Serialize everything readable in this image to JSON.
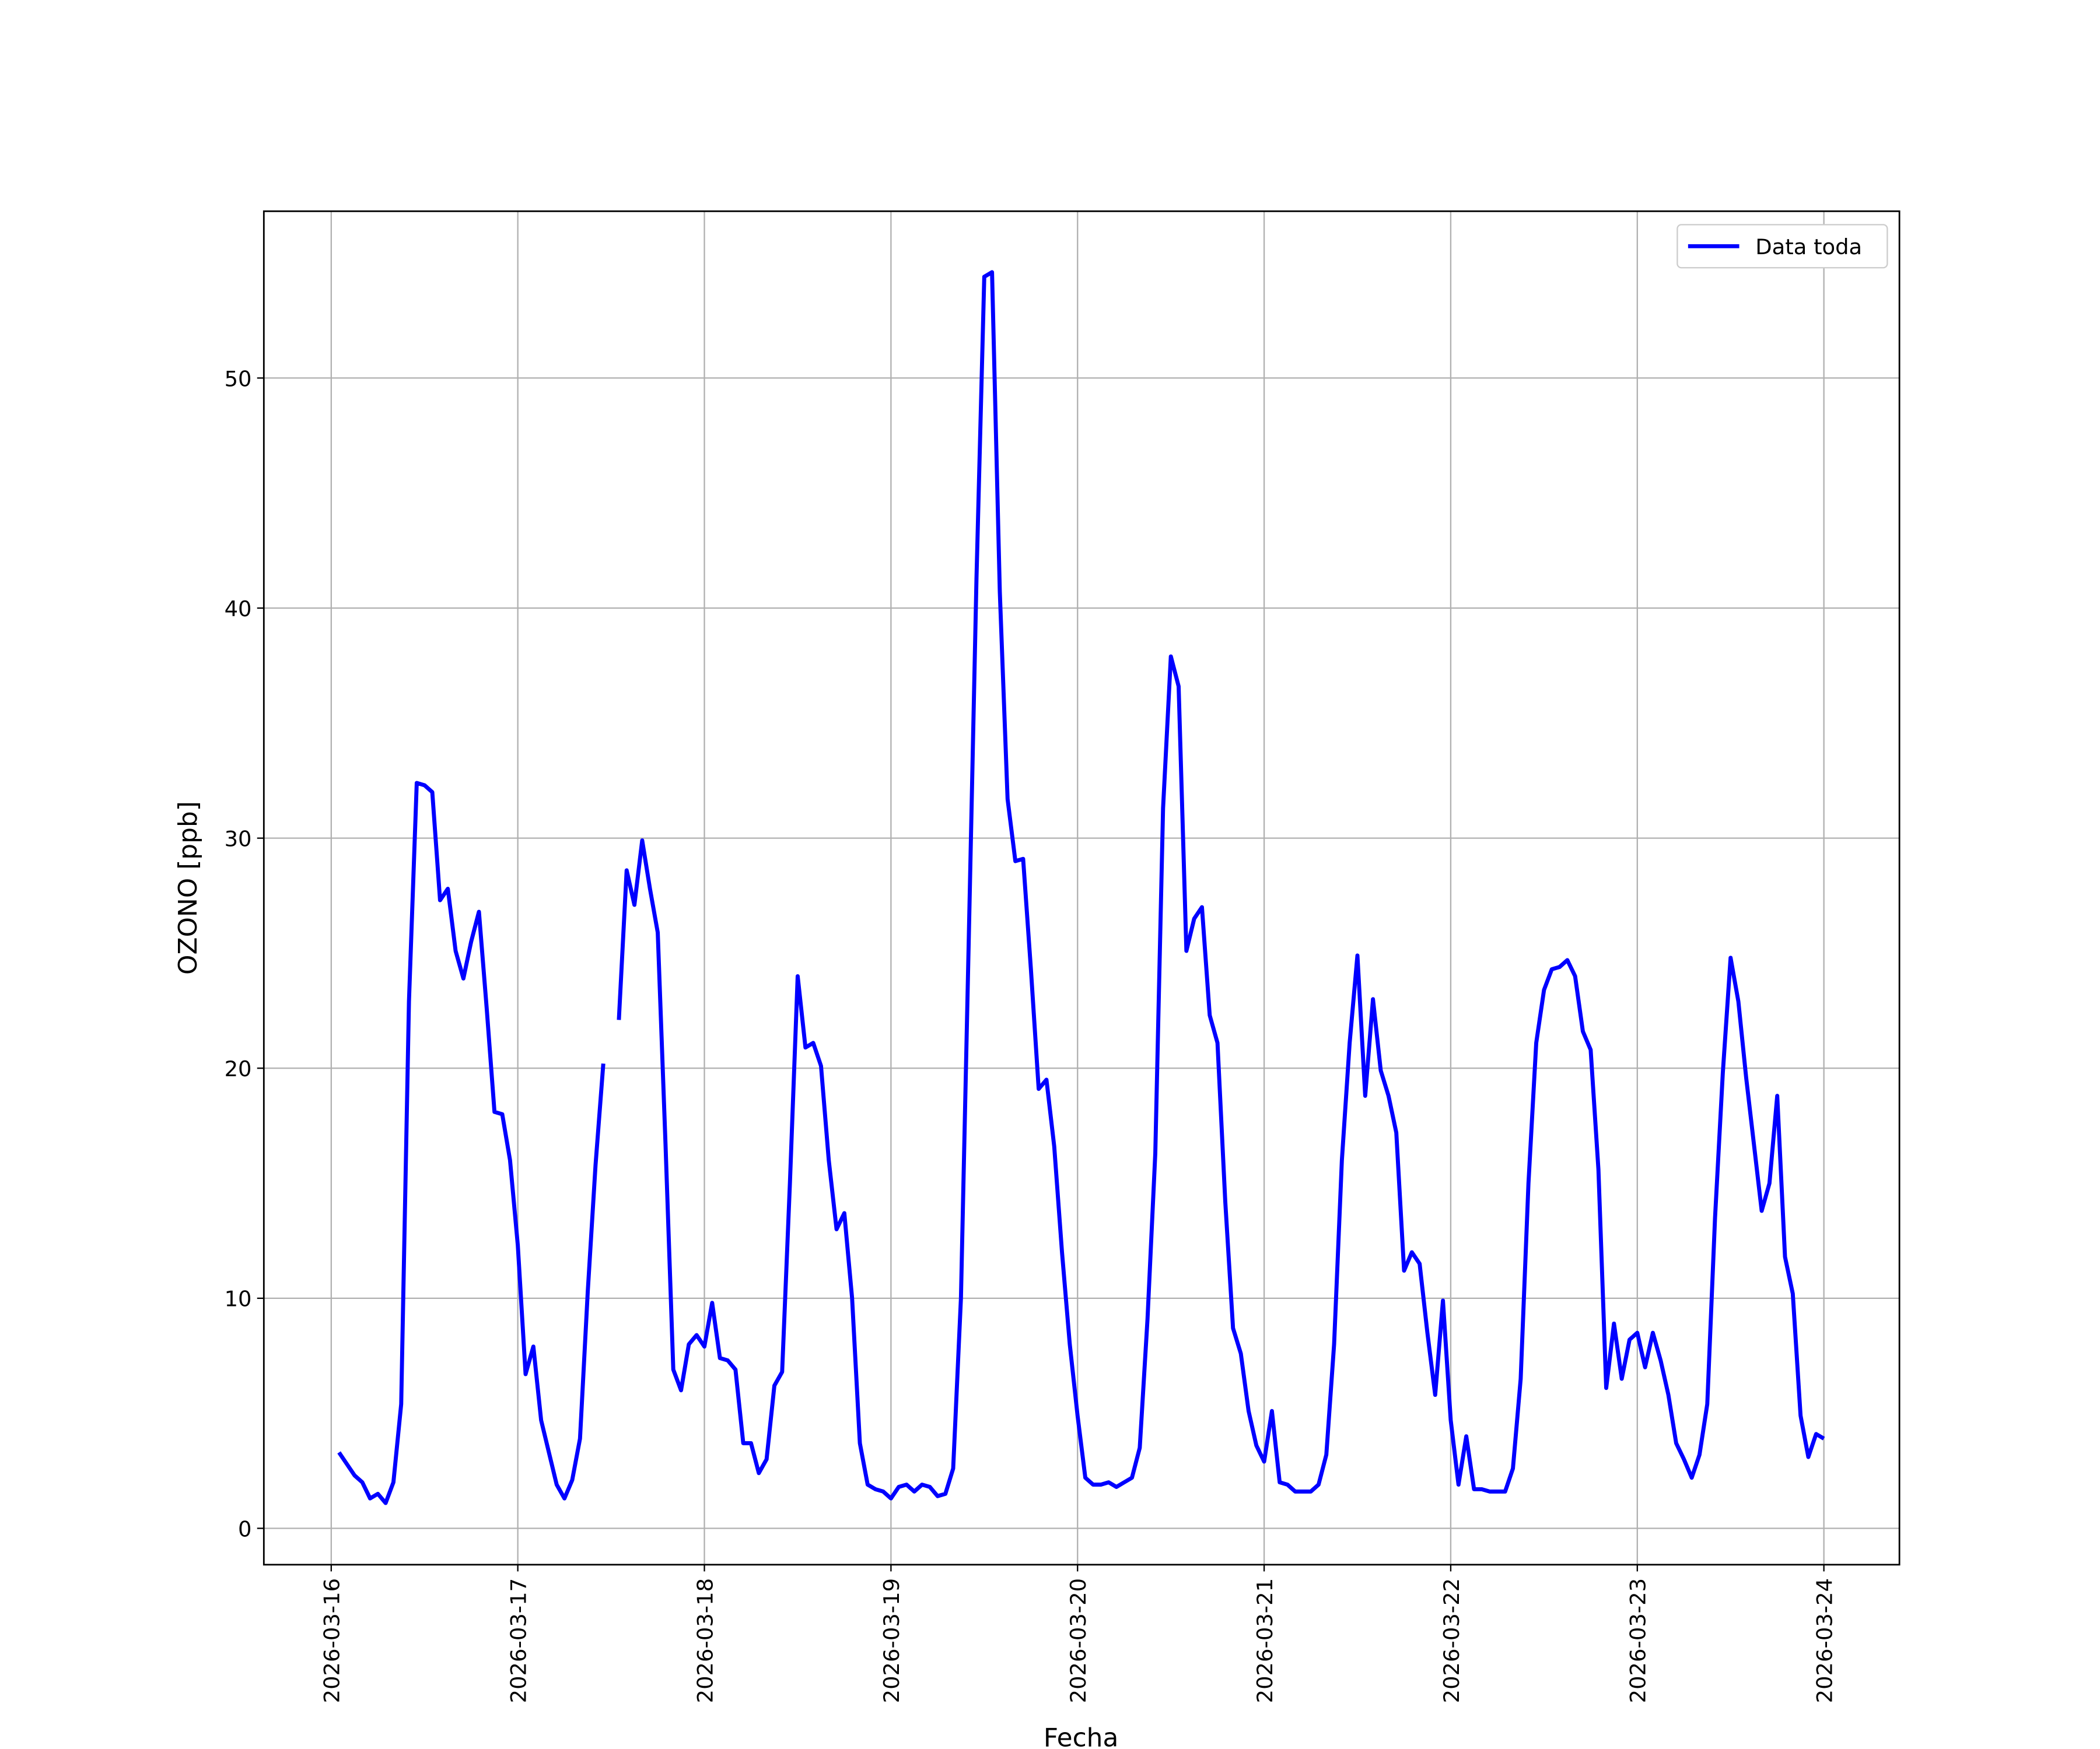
{
  "chart_data": {
    "type": "line",
    "xlabel": "Fecha",
    "ylabel": "OZONO [ppb]",
    "grid": true,
    "legend": "upper right",
    "xlim": [
      "2026-03-15 15:20",
      "2026-03-24 09:43"
    ],
    "xticks": [
      "2026-03-16",
      "2026-03-17",
      "2026-03-18",
      "2026-03-19",
      "2026-03-20",
      "2026-03-21",
      "2026-03-22",
      "2026-03-23",
      "2026-03-24"
    ],
    "ylim": [
      -1.58,
      57.25
    ],
    "yticks": [
      0,
      10,
      20,
      30,
      40,
      50
    ],
    "x": [
      "2026-03-16 01:00",
      "2026-03-16 02:00",
      "2026-03-16 03:00",
      "2026-03-16 04:00",
      "2026-03-16 05:00",
      "2026-03-16 06:00",
      "2026-03-16 07:00",
      "2026-03-16 08:00",
      "2026-03-16 09:00",
      "2026-03-16 10:00",
      "2026-03-16 11:00",
      "2026-03-16 12:00",
      "2026-03-16 13:00",
      "2026-03-16 14:00",
      "2026-03-16 15:00",
      "2026-03-16 16:00",
      "2026-03-16 17:00",
      "2026-03-16 18:00",
      "2026-03-16 19:00",
      "2026-03-16 20:00",
      "2026-03-16 21:00",
      "2026-03-16 22:00",
      "2026-03-16 23:00",
      "2026-03-17 00:00",
      "2026-03-17 01:00",
      "2026-03-17 02:00",
      "2026-03-17 03:00",
      "2026-03-17 04:00",
      "2026-03-17 05:00",
      "2026-03-17 06:00",
      "2026-03-17 07:00",
      "2026-03-17 08:00",
      "2026-03-17 09:00",
      "2026-03-17 10:00",
      "2026-03-17 11:00",
      "2026-03-17 12:00",
      "2026-03-17 13:00",
      "2026-03-17 14:00",
      "2026-03-17 15:00",
      "2026-03-17 16:00",
      "2026-03-17 17:00",
      "2026-03-17 18:00",
      "2026-03-17 19:00",
      "2026-03-17 20:00",
      "2026-03-17 21:00",
      "2026-03-17 22:00",
      "2026-03-17 23:00",
      "2026-03-18 00:00",
      "2026-03-18 01:00",
      "2026-03-18 02:00",
      "2026-03-18 03:00",
      "2026-03-18 04:00",
      "2026-03-18 05:00",
      "2026-03-18 06:00",
      "2026-03-18 07:00",
      "2026-03-18 08:00",
      "2026-03-18 09:00",
      "2026-03-18 10:00",
      "2026-03-18 11:00",
      "2026-03-18 12:00",
      "2026-03-18 13:00",
      "2026-03-18 14:00",
      "2026-03-18 15:00",
      "2026-03-18 16:00",
      "2026-03-18 17:00",
      "2026-03-18 18:00",
      "2026-03-18 19:00",
      "2026-03-18 20:00",
      "2026-03-18 21:00",
      "2026-03-18 22:00",
      "2026-03-18 23:00",
      "2026-03-19 00:00",
      "2026-03-19 01:00",
      "2026-03-19 02:00",
      "2026-03-19 03:00",
      "2026-03-19 04:00",
      "2026-03-19 05:00",
      "2026-03-19 06:00",
      "2026-03-19 07:00",
      "2026-03-19 08:00",
      "2026-03-19 09:00",
      "2026-03-19 10:00",
      "2026-03-19 11:00",
      "2026-03-19 12:00",
      "2026-03-19 13:00",
      "2026-03-19 14:00",
      "2026-03-19 15:00",
      "2026-03-19 16:00",
      "2026-03-19 17:00",
      "2026-03-19 18:00",
      "2026-03-19 19:00",
      "2026-03-19 20:00",
      "2026-03-19 21:00",
      "2026-03-19 22:00",
      "2026-03-19 23:00",
      "2026-03-20 00:00",
      "2026-03-20 01:00",
      "2026-03-20 02:00",
      "2026-03-20 03:00",
      "2026-03-20 04:00",
      "2026-03-20 05:00",
      "2026-03-20 06:00",
      "2026-03-20 07:00",
      "2026-03-20 08:00",
      "2026-03-20 09:00",
      "2026-03-20 10:00",
      "2026-03-20 11:00",
      "2026-03-20 12:00",
      "2026-03-20 13:00",
      "2026-03-20 14:00",
      "2026-03-20 15:00",
      "2026-03-20 16:00",
      "2026-03-20 17:00",
      "2026-03-20 18:00",
      "2026-03-20 19:00",
      "2026-03-20 20:00",
      "2026-03-20 21:00",
      "2026-03-20 22:00",
      "2026-03-20 23:00",
      "2026-03-21 00:00",
      "2026-03-21 01:00",
      "2026-03-21 02:00",
      "2026-03-21 03:00",
      "2026-03-21 04:00",
      "2026-03-21 05:00",
      "2026-03-21 06:00",
      "2026-03-21 07:00",
      "2026-03-21 08:00",
      "2026-03-21 09:00",
      "2026-03-21 10:00",
      "2026-03-21 11:00",
      "2026-03-21 12:00",
      "2026-03-21 13:00",
      "2026-03-21 14:00",
      "2026-03-21 15:00",
      "2026-03-21 16:00",
      "2026-03-21 17:00",
      "2026-03-21 18:00",
      "2026-03-21 19:00",
      "2026-03-21 20:00",
      "2026-03-21 21:00",
      "2026-03-21 22:00",
      "2026-03-21 23:00",
      "2026-03-22 00:00",
      "2026-03-22 01:00",
      "2026-03-22 02:00",
      "2026-03-22 03:00",
      "2026-03-22 04:00",
      "2026-03-22 05:00",
      "2026-03-22 06:00",
      "2026-03-22 07:00",
      "2026-03-22 08:00",
      "2026-03-22 09:00",
      "2026-03-22 10:00",
      "2026-03-22 11:00",
      "2026-03-22 12:00",
      "2026-03-22 13:00",
      "2026-03-22 14:00",
      "2026-03-22 15:00",
      "2026-03-22 16:00",
      "2026-03-22 17:00",
      "2026-03-22 18:00",
      "2026-03-22 19:00",
      "2026-03-22 20:00",
      "2026-03-22 21:00",
      "2026-03-22 22:00",
      "2026-03-22 23:00",
      "2026-03-23 00:00",
      "2026-03-23 01:00",
      "2026-03-23 02:00",
      "2026-03-23 03:00",
      "2026-03-23 04:00",
      "2026-03-23 05:00",
      "2026-03-23 06:00",
      "2026-03-23 07:00",
      "2026-03-23 08:00",
      "2026-03-23 09:00",
      "2026-03-23 10:00",
      "2026-03-23 11:00",
      "2026-03-23 12:00",
      "2026-03-23 13:00",
      "2026-03-23 14:00",
      "2026-03-23 15:00",
      "2026-03-23 16:00",
      "2026-03-23 17:00",
      "2026-03-23 18:00",
      "2026-03-23 19:00",
      "2026-03-23 20:00",
      "2026-03-23 21:00",
      "2026-03-23 22:00",
      "2026-03-23 23:00",
      "2026-03-24 00:00"
    ],
    "series": [
      {
        "name": "Data toda",
        "color": "#0000ff",
        "values": [
          3.3,
          2.8,
          2.3,
          2.0,
          1.3,
          1.5,
          1.1,
          2.0,
          5.4,
          22.9,
          32.4,
          32.3,
          32.0,
          27.3,
          27.8,
          25.1,
          23.9,
          25.5,
          26.8,
          22.6,
          18.1,
          18.0,
          16.0,
          12.3,
          6.7,
          7.9,
          4.7,
          3.3,
          1.9,
          1.3,
          2.1,
          3.9,
          10.3,
          15.8,
          20.2,
          null,
          22.1,
          28.6,
          27.1,
          29.9,
          27.8,
          25.9,
          16.7,
          6.9,
          6.0,
          8.0,
          8.4,
          7.9,
          9.8,
          7.4,
          7.3,
          6.9,
          3.7,
          3.7,
          2.4,
          3.0,
          6.2,
          6.8,
          15.0,
          24.0,
          20.9,
          21.1,
          20.1,
          16.0,
          13.0,
          13.7,
          10.0,
          3.7,
          1.9,
          1.7,
          1.6,
          1.3,
          1.8,
          1.9,
          1.6,
          1.9,
          1.8,
          1.4,
          1.5,
          2.6,
          10.0,
          25.5,
          41.3,
          54.4,
          54.6,
          40.7,
          31.7,
          29.0,
          29.1,
          24.3,
          19.1,
          19.5,
          16.6,
          12.0,
          8.0,
          4.9,
          2.2,
          1.9,
          1.9,
          2.0,
          1.8,
          2.0,
          2.2,
          3.5,
          9.1,
          16.3,
          31.3,
          37.9,
          36.6,
          25.1,
          26.5,
          27.0,
          22.3,
          21.1,
          14.2,
          8.7,
          7.6,
          5.1,
          3.6,
          2.9,
          5.1,
          2.0,
          1.9,
          1.6,
          1.6,
          1.6,
          1.9,
          3.2,
          8.0,
          16.0,
          21.1,
          24.9,
          18.8,
          23.0,
          19.9,
          18.8,
          17.2,
          11.2,
          12.0,
          11.5,
          8.5,
          5.8,
          9.9,
          4.7,
          1.9,
          4.0,
          1.7,
          1.7,
          1.6,
          1.6,
          1.6,
          2.6,
          6.5,
          15.0,
          21.1,
          23.4,
          24.3,
          24.4,
          24.7,
          24.0,
          21.6,
          20.8,
          15.6,
          6.1,
          8.9,
          6.5,
          8.2,
          8.5,
          7.0,
          8.5,
          7.3,
          5.8,
          3.7,
          3.0,
          2.2,
          3.2,
          5.4,
          13.5,
          19.8,
          24.8,
          22.9,
          19.6,
          16.7,
          13.8,
          15.0,
          18.8,
          11.8,
          10.2,
          4.9,
          3.1,
          4.1,
          3.9
        ]
      }
    ]
  }
}
